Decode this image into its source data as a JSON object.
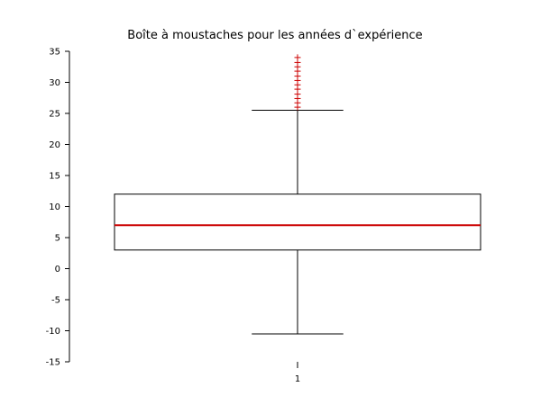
{
  "chart_data": {
    "type": "boxplot",
    "title": "Boîte à moustaches pour les années d`expérience",
    "categories": [
      "1"
    ],
    "ylim": [
      -15,
      35
    ],
    "yticks": [
      -15,
      -10,
      -5,
      0,
      5,
      10,
      15,
      20,
      25,
      30,
      35
    ],
    "boxes": [
      {
        "category": "1",
        "whisker_low": -10.5,
        "q1": 3,
        "median": 7,
        "q3": 12,
        "whisker_high": 25.5,
        "outliers": [
          26,
          26.7,
          27.4,
          28.1,
          28.9,
          29.6,
          30.3,
          31,
          31.8,
          32.5,
          33.2,
          34
        ]
      }
    ],
    "colors": {
      "box": "#000000",
      "median": "#cc0000",
      "outlier": "#cc0000"
    },
    "grid": false
  }
}
